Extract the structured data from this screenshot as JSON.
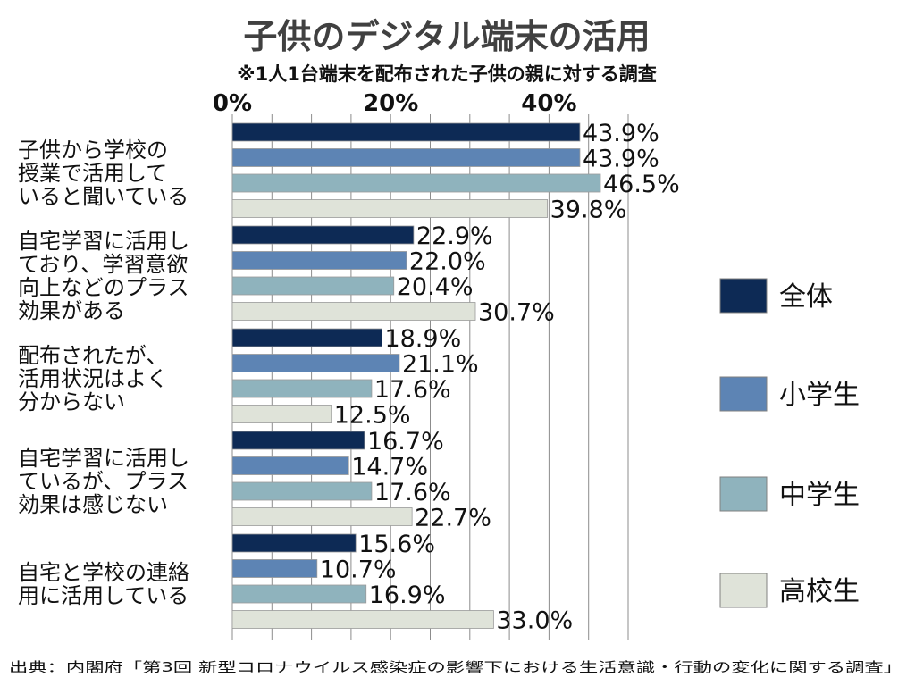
{
  "chart_data": {
    "type": "bar",
    "orientation": "horizontal",
    "title": "子供のデジタル端末の活用",
    "subtitle": "※1人1台端末を配布された子供の親に対する調査",
    "source": "出典：内閣府「第3回  新型コロナウイルス感染症の影響下における生活意識・行動の変化に関する調査」",
    "categories": [
      [
        "子供から学校の",
        "授業で活用して",
        "いると聞いている"
      ],
      [
        "自宅学習に活用し",
        "ており、学習意欲",
        "向上などのプラス",
        "効果がある"
      ],
      [
        "配布されたが、",
        "活用状況はよく",
        "分からない"
      ],
      [
        "自宅学習に活用し",
        "ているが、プラス",
        "効果は感じない"
      ],
      [
        "自宅と学校の連絡",
        "用に活用している"
      ]
    ],
    "series": [
      {
        "name": "全体",
        "color": "#0d2a55",
        "values": [
          43.9,
          22.9,
          18.9,
          16.7,
          15.6
        ]
      },
      {
        "name": "小学生",
        "color": "#5d84b4",
        "values": [
          43.9,
          22.0,
          21.1,
          14.7,
          10.7
        ]
      },
      {
        "name": "中学生",
        "color": "#8fb3bd",
        "values": [
          46.5,
          20.4,
          17.6,
          17.6,
          16.9
        ]
      },
      {
        "name": "高校生",
        "color": "#dfe3d9",
        "values": [
          39.8,
          30.7,
          12.5,
          22.7,
          33.0
        ]
      }
    ],
    "value_suffix": "%",
    "xlim": [
      0,
      50
    ],
    "x_ticks": [
      0,
      20,
      40
    ],
    "x_tick_labels": [
      "0%",
      "20%",
      "40%"
    ],
    "grid": true,
    "legend_position": "right"
  }
}
